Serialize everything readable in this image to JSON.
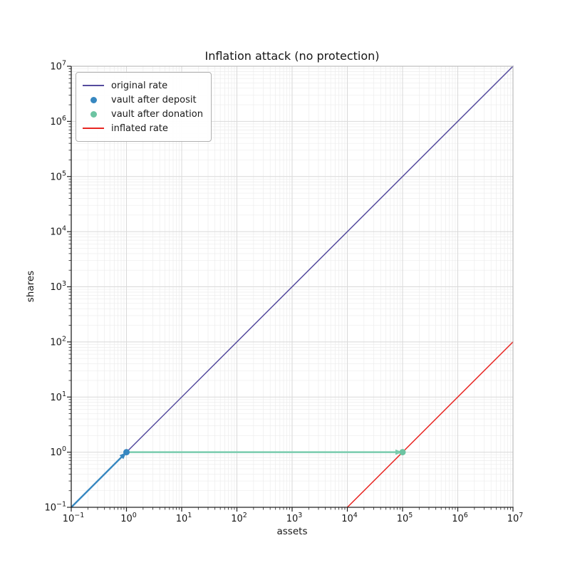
{
  "figure": {
    "background": "#ffffff",
    "text_color": "#161616",
    "spine_dark": "#222222",
    "spine_light": "#b0b0b0",
    "tick_color": "#222222"
  },
  "chart_data": {
    "type": "line",
    "title": "Inflation attack (no protection)",
    "xlabel": "assets",
    "ylabel": "shares",
    "xscale": "log",
    "yscale": "log",
    "xlim": [
      0.1,
      10000000
    ],
    "ylim": [
      0.1,
      10000000
    ],
    "x_tick_exponents": [
      -1,
      0,
      1,
      2,
      3,
      4,
      5,
      6,
      7
    ],
    "y_tick_exponents": [
      -1,
      0,
      1,
      2,
      3,
      4,
      5,
      6,
      7
    ],
    "grid": {
      "major": true,
      "minor": true,
      "major_color": "#d9d9d9",
      "minor_color": "#ececec"
    },
    "legend": {
      "position": "upper left"
    },
    "series": [
      {
        "name": "original rate",
        "kind": "line",
        "color": "#554b9e",
        "width": 1.5,
        "points": [
          [
            0.1,
            0.1
          ],
          [
            10000000,
            10000000
          ]
        ]
      },
      {
        "name": "vault after deposit",
        "kind": "scatter",
        "color": "#3787c0",
        "radius": 4.5,
        "points": [
          [
            1,
            1
          ]
        ]
      },
      {
        "name": "vault after donation",
        "kind": "scatter",
        "color": "#6cc4a2",
        "radius": 4.5,
        "points": [
          [
            100000,
            1
          ]
        ]
      },
      {
        "name": "inflated rate",
        "kind": "line",
        "color": "#e82622",
        "width": 1.5,
        "points": [
          [
            10000,
            0.1
          ],
          [
            10000000,
            100
          ]
        ]
      }
    ],
    "annotations": [
      {
        "kind": "arrow",
        "color": "#3787c0",
        "width": 2.4,
        "from": [
          0.1,
          0.1
        ],
        "to": [
          1,
          1
        ]
      },
      {
        "kind": "arrow",
        "color": "#79ccae",
        "width": 2.4,
        "from": [
          1,
          1
        ],
        "to": [
          100000,
          1
        ]
      }
    ]
  }
}
